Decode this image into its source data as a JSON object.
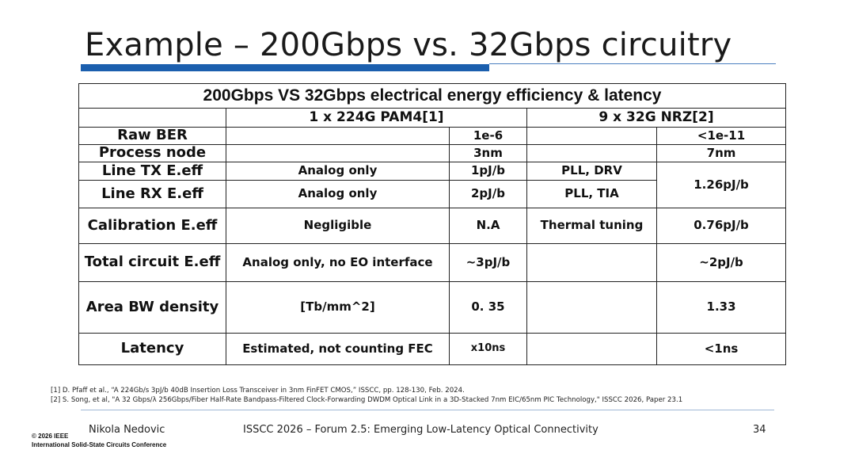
{
  "slide": {
    "title": "Example – 200Gbps vs. 32Gbps circuitry"
  },
  "table": {
    "title": "200Gbps VS 32Gbps electrical energy efficiency & latency",
    "col_a": "1 x 224G PAM4[1]",
    "col_b": "9 x 32G NRZ[2]",
    "rows": {
      "raw_ber": {
        "label": "Raw BER",
        "a_desc": "",
        "a_val": "1e-6",
        "b_desc": "",
        "b_val": "<1e-11"
      },
      "process": {
        "label": "Process node",
        "a_desc": "",
        "a_val": "3nm",
        "b_desc": "",
        "b_val": "7nm"
      },
      "line_tx": {
        "label": "Line TX E.eff",
        "a_desc": "Analog only",
        "a_val": "1pJ/b",
        "b_desc": "PLL, DRV"
      },
      "line_rx": {
        "label": "Line RX E.eff",
        "a_desc": "Analog only",
        "a_val": "2pJ/b",
        "b_desc": "PLL, TIA"
      },
      "line_b_val": "1.26pJ/b",
      "calibration": {
        "label": "Calibration E.eff",
        "a_desc": "Negligible",
        "a_val": "N.A",
        "b_desc": "Thermal tuning",
        "b_val": "0.76pJ/b"
      },
      "total": {
        "label": "Total circuit E.eff",
        "a_desc": "Analog only, no EO interface",
        "a_val": "~3pJ/b",
        "b_desc": "",
        "b_val": "~2pJ/b"
      },
      "area": {
        "label": "Area BW density",
        "a_desc": "[Tb/mm^2]",
        "a_val": "0. 35",
        "b_desc": "",
        "b_val": "1.33"
      },
      "latency": {
        "label": "Latency",
        "a_desc": "Estimated, not counting FEC",
        "a_val": "x10ns",
        "b_desc": "",
        "b_val": "<1ns"
      }
    }
  },
  "references": [
    "[1] D. Pfaff et al., “A 224Gb/s 3pJ/b 40dB Insertion Loss Transceiver in 3nm FinFET CMOS,” ISSCC, pp. 128-130, Feb. 2024.",
    "[2] S. Song, et al, \"A 32 Gbps/λ 256Gbps/Fiber Half-Rate Bandpass-Filtered Clock-Forwarding DWDM Optical Link in a 3D-Stacked 7nm EIC/65nm PIC Technology,\" ISSCC 2026, Paper 23.1"
  ],
  "footer": {
    "author": "Nikola Nedovic",
    "conference": "ISSCC 2026 – Forum 2.5: Emerging Low-Latency Optical Connectivity",
    "page": "34",
    "copyright_line1": "© 2026 IEEE",
    "copyright_line2": "International Solid-State Circuits Conference"
  },
  "colors": {
    "accent_bar": "#1b5fae"
  }
}
